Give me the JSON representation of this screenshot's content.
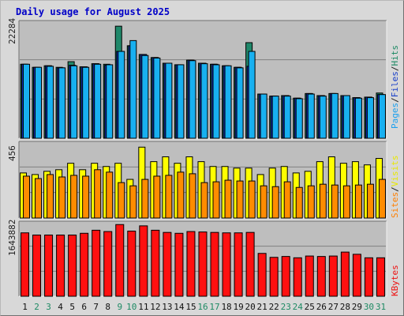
{
  "title": "Daily usage for August 2025",
  "panels": {
    "top": {
      "max_label": "22284",
      "legend": [
        {
          "text": "Pages",
          "color": "#1ca0ee"
        },
        {
          "text": "/",
          "color": "#1a1a1a"
        },
        {
          "text": "Files",
          "color": "#1a40c8"
        },
        {
          "text": "/",
          "color": "#1a1a1a"
        },
        {
          "text": "Hits",
          "color": "#1e8a64"
        }
      ]
    },
    "middle": {
      "max_label": "456",
      "legend": [
        {
          "text": "Sites",
          "color": "#ff8000"
        },
        {
          "text": "/",
          "color": "#1a1a1a"
        },
        {
          "text": "Visits",
          "color": "#e8e800"
        }
      ]
    },
    "bottom": {
      "max_label": "1643882",
      "legend": [
        {
          "text": "KBytes",
          "color": "#ee1010"
        }
      ]
    }
  },
  "colors": {
    "hits": "#20886a",
    "files": "#1030c0",
    "pages": "#18b0f0",
    "visits": "#ffff00",
    "sites": "#ff8c00",
    "kbytes": "#ff1010",
    "plot_bg": "#bebebe",
    "weekend_day": "#1e8a64",
    "weekday": "#101010"
  },
  "chart_data": {
    "type": "bar",
    "title": "Daily usage for August 2025",
    "categories": [
      "1",
      "2",
      "3",
      "4",
      "5",
      "6",
      "7",
      "8",
      "9",
      "10",
      "11",
      "12",
      "13",
      "14",
      "15",
      "16",
      "17",
      "18",
      "19",
      "20",
      "21",
      "22",
      "23",
      "24",
      "25",
      "26",
      "27",
      "28",
      "29",
      "30",
      "31"
    ],
    "weekend_days": [
      "2",
      "3",
      "9",
      "10",
      "16",
      "17",
      "23",
      "24",
      "30",
      "31"
    ],
    "panels": [
      {
        "name": "usage",
        "ymax": 22284,
        "series": [
          {
            "name": "Hits",
            "values": [
              14400,
              13800,
              14100,
              13800,
              14900,
              13900,
              14500,
              14400,
              21800,
              18000,
              16300,
              15700,
              14600,
              14300,
              15200,
              14600,
              14400,
              14100,
              13800,
              18600,
              8600,
              8200,
              8300,
              7800,
              8700,
              8300,
              8700,
              8300,
              7900,
              8000,
              8800
            ]
          },
          {
            "name": "Files",
            "values": [
              14400,
              13800,
              14100,
              13700,
              14200,
              13900,
              14500,
              14200,
              16900,
              18000,
              16300,
              15700,
              14600,
              14300,
              15200,
              14600,
              14400,
              14100,
              13800,
              14000,
              8600,
              8200,
              8300,
              7800,
              8700,
              8300,
              8700,
              8300,
              7900,
              8000,
              8500
            ]
          },
          {
            "name": "Pages",
            "values": [
              14400,
              13800,
              14000,
              13700,
              14100,
              13800,
              14400,
              14300,
              16900,
              19000,
              16100,
              15600,
              14600,
              14300,
              15100,
              14500,
              14300,
              14100,
              13700,
              16900,
              8600,
              8200,
              8200,
              7700,
              8600,
              8200,
              8700,
              8300,
              7800,
              7900,
              8500
            ]
          }
        ]
      },
      {
        "name": "visitors",
        "ymax": 456,
        "series": [
          {
            "name": "Visits",
            "values": [
              280,
              270,
              290,
              300,
              340,
              300,
              340,
              320,
              340,
              240,
              440,
              350,
              380,
              340,
              380,
              350,
              320,
              320,
              310,
              310,
              270,
              310,
              320,
              280,
              290,
              350,
              380,
              340,
              350,
              330,
              370
            ]
          },
          {
            "name": "Sites",
            "values": [
              260,
              245,
              270,
              255,
              265,
              260,
              300,
              285,
              220,
              200,
              240,
              260,
              265,
              285,
              275,
              220,
              225,
              235,
              230,
              230,
              200,
              195,
              225,
              190,
              200,
              210,
              205,
              200,
              205,
              210,
              240
            ]
          }
        ]
      },
      {
        "name": "traffic",
        "ymax": 1643882,
        "series": [
          {
            "name": "KBytes",
            "values": [
              1450000,
              1400000,
              1400000,
              1400000,
              1400000,
              1440000,
              1510000,
              1480000,
              1640000,
              1490000,
              1610000,
              1510000,
              1460000,
              1440000,
              1480000,
              1470000,
              1460000,
              1450000,
              1450000,
              1460000,
              980000,
              890000,
              910000,
              880000,
              920000,
              910000,
              920000,
              1010000,
              960000,
              880000,
              880000
            ]
          }
        ]
      }
    ]
  }
}
